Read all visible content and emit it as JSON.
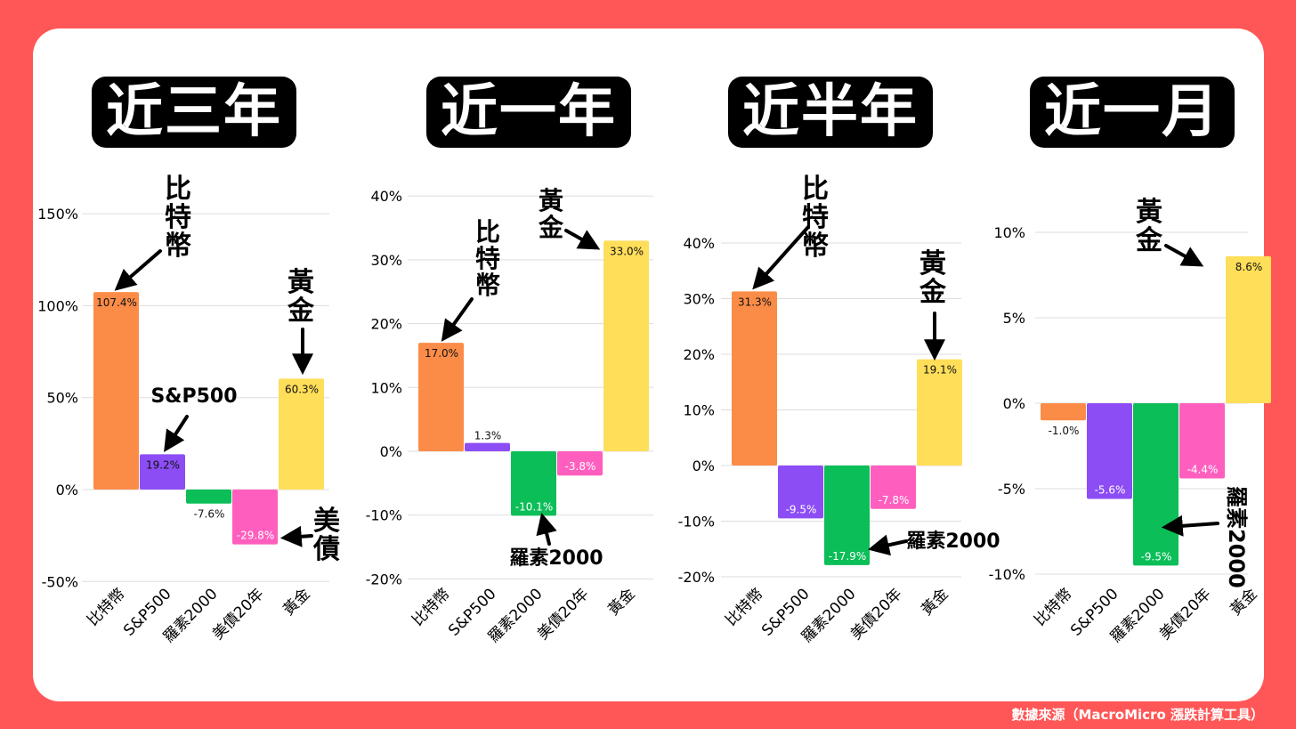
{
  "source_note": "數據來源（MacroMicro 漲跌計算工具）",
  "categories": [
    "比特幣",
    "S&P500",
    "羅素2000",
    "美債20年",
    "黃金"
  ],
  "colors": {
    "background": "#FF5757",
    "card": "#FFFFFF",
    "比特幣": "#FB8C48",
    "S&P500": "#8C4DF5",
    "羅素2000": "#0BBE58",
    "美債20年": "#FE5FBE",
    "黃金": "#FFDE59"
  },
  "chart_data": [
    {
      "type": "bar",
      "title": "近三年",
      "categories": [
        "比特幣",
        "S&P500",
        "羅素2000",
        "美債20年",
        "黃金"
      ],
      "values": [
        107.4,
        19.2,
        -7.6,
        -29.8,
        60.3
      ],
      "value_labels": [
        "107.4%",
        "19.2%",
        "-7.6%",
        "-29.8%",
        "60.3%"
      ],
      "ylim": [
        -50,
        150
      ],
      "yticks": [
        -50,
        0,
        50,
        100,
        150
      ],
      "ytick_labels": [
        "-50%",
        "0%",
        "50%",
        "100%",
        "150%"
      ],
      "grid": true,
      "annotations": [
        "比特幣",
        "S&P500",
        "黃金",
        "美債"
      ]
    },
    {
      "type": "bar",
      "title": "近一年",
      "categories": [
        "比特幣",
        "S&P500",
        "羅素2000",
        "美債20年",
        "黃金"
      ],
      "values": [
        17.0,
        1.3,
        -10.1,
        -3.8,
        33.0
      ],
      "value_labels": [
        "17.0%",
        "1.3%",
        "-10.1%",
        "-3.8%",
        "33.0%"
      ],
      "ylim": [
        -20,
        40
      ],
      "yticks": [
        -20,
        -10,
        0,
        10,
        20,
        30,
        40
      ],
      "ytick_labels": [
        "-20%",
        "-10%",
        "0%",
        "10%",
        "20%",
        "30%",
        "40%"
      ],
      "grid": true,
      "annotations": [
        "黃金",
        "比特幣",
        "羅素2000"
      ]
    },
    {
      "type": "bar",
      "title": "近半年",
      "categories": [
        "比特幣",
        "S&P500",
        "羅素2000",
        "美債20年",
        "黃金"
      ],
      "values": [
        31.3,
        -9.5,
        -17.9,
        -7.8,
        19.1
      ],
      "value_labels": [
        "31.3%",
        "-9.5%",
        "-17.9%",
        "-7.8%",
        "19.1%"
      ],
      "ylim": [
        -20,
        40
      ],
      "yticks": [
        -20,
        -10,
        0,
        10,
        20,
        30,
        40
      ],
      "ytick_labels": [
        "-20%",
        "-10%",
        "0%",
        "10%",
        "20%",
        "30%",
        "40%"
      ],
      "grid": true,
      "annotations": [
        "比特幣",
        "黃金",
        "羅素2000"
      ]
    },
    {
      "type": "bar",
      "title": "近一月",
      "categories": [
        "比特幣",
        "S&P500",
        "羅素2000",
        "美債20年",
        "黃金"
      ],
      "values": [
        -1.0,
        -5.6,
        -9.5,
        -4.4,
        8.6
      ],
      "value_labels": [
        "-1.0%",
        "-5.6%",
        "-9.5%",
        "-4.4%",
        "8.6%"
      ],
      "ylim": [
        -10,
        10
      ],
      "yticks": [
        -10,
        -5,
        0,
        5,
        10
      ],
      "ytick_labels": [
        "-10%",
        "-5%",
        "0%",
        "5%",
        "10%"
      ],
      "grid": true,
      "annotations": [
        "黃金",
        "羅素2000"
      ]
    }
  ]
}
